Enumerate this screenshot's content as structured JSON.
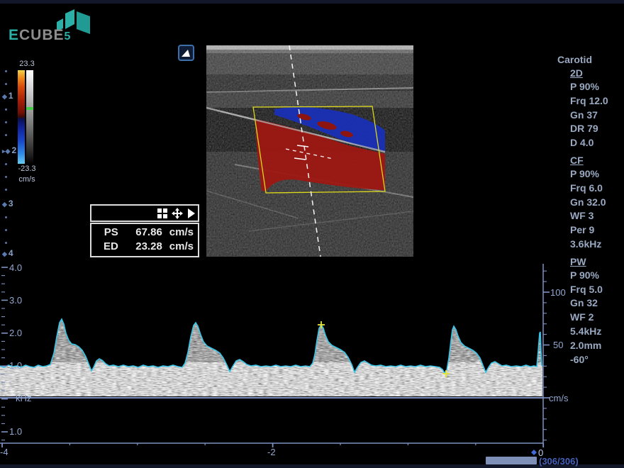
{
  "brand": {
    "e": "E",
    "cube": "CUBE",
    "five": "5"
  },
  "colorbar": {
    "max": "23.3",
    "min": "-23.3",
    "unit": "cm/s"
  },
  "depth": {
    "labels": [
      "1",
      "2",
      "3",
      "4"
    ]
  },
  "measurement": {
    "ps_label": "PS",
    "ps_value": "67.86",
    "ps_unit": "cm/s",
    "ed_label": "ED",
    "ed_value": "23.28",
    "ed_unit": "cm/s"
  },
  "panel": {
    "preset": "Carotid",
    "sections": [
      {
        "title": "2D",
        "items": [
          "P 90%",
          "Frq 12.0",
          "Gn 37",
          "DR 79",
          "D 4.0"
        ]
      },
      {
        "title": "CF",
        "items": [
          "P 90%",
          "Frq 6.0",
          "Gn 32.0",
          "WF 3",
          "Per 9",
          "3.6kHz"
        ]
      },
      {
        "title": "PW",
        "items": [
          "P 90%",
          "Frq 5.0",
          "Gn 32",
          "WF 2",
          "5.4kHz",
          "2.0mm",
          "-60°"
        ]
      }
    ]
  },
  "doppler": {
    "y_labels": [
      "4.0",
      "3.0",
      "2.0",
      "1.0"
    ],
    "baseline_unit": "kHz",
    "below_label": "1.0",
    "right_labels": [
      "100",
      "50"
    ],
    "right_unit": "cm/s",
    "x_labels": [
      "-4",
      "-2",
      "0"
    ],
    "frame_counter": "(306/306)"
  },
  "colors": {
    "accent_teal": "#2bb0a8",
    "axis_blue": "#7d92c2",
    "envelope_cyan": "#38c4e6",
    "roi_yellow": "#dcd81c",
    "flow_red": "#9e1712",
    "flow_blue": "#1830b8",
    "marker_yellow": "#e8e43a"
  }
}
